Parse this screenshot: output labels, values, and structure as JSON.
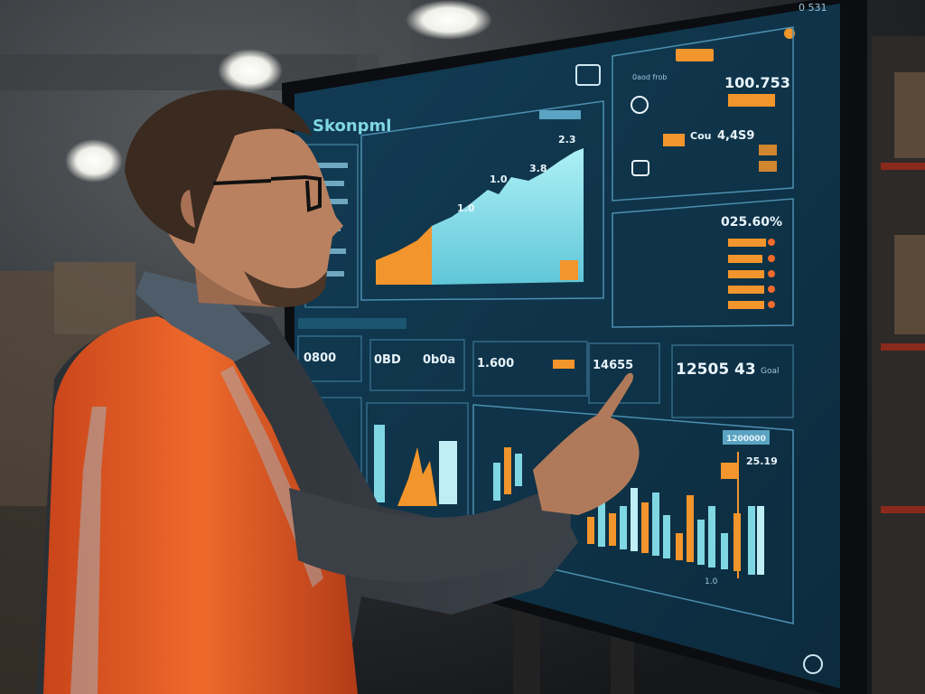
{
  "screen": {
    "title": "Skonpml",
    "corner_tag": "0 531",
    "top_right_header": "0aod frob",
    "top_right_value_1": "100.753",
    "top_right_value_2": "Cou",
    "top_right_value_3": "4,4S9",
    "mid_right_value": "025.60%",
    "tile_1": "0800",
    "tile_2": "0BD",
    "tile_3": "0b0a",
    "tile_4": "1.600",
    "tile_5": "14655",
    "tile_6": "12505 43",
    "tile_6_label": "Goal",
    "big_chart_label_a": "2.3",
    "big_chart_label_b": "1.0",
    "big_chart_label_c": "1.0",
    "big_chart_label_d": "3.8",
    "bottom_chart_tag": "1200000",
    "bottom_chart_value": "25.19",
    "bottom_chart_marker": "1.0"
  },
  "colors": {
    "screen_bg": "#0f3246",
    "panel_border": "#4b8fb0",
    "cyan": "#7fd7e4",
    "orange": "#f2952c",
    "vest": "#e0541f"
  }
}
